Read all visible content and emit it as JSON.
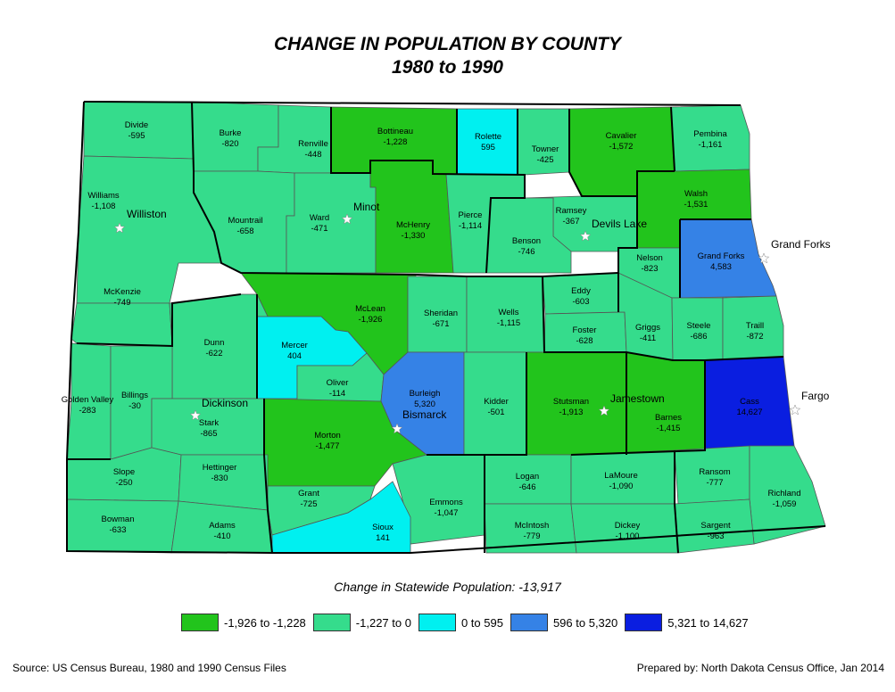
{
  "title": "CHANGE IN POPULATION BY COUNTY",
  "subtitle": "1980 to 1990",
  "statewide_label": "Change in Statewide Population:  -13,917",
  "colors": {
    "dark_green": "#22c41c",
    "medium_green": "#35dc8c",
    "cyan": "#00f0f0",
    "light_blue": "#3582e6",
    "dark_blue": "#0a1ee0",
    "border": "#555555"
  },
  "legend": [
    {
      "label": "-1,926 to -1,228",
      "color": "#22c41c"
    },
    {
      "label": "-1,227 to 0",
      "color": "#35dc8c"
    },
    {
      "label": "0 to 595",
      "color": "#00f0f0"
    },
    {
      "label": "596 to 5,320",
      "color": "#3582e6"
    },
    {
      "label": "5,321 to 14,627",
      "color": "#0a1ee0"
    }
  ],
  "counties": [
    {
      "name": "Divide",
      "value": "-595"
    },
    {
      "name": "Burke",
      "value": "-820"
    },
    {
      "name": "Renville",
      "value": "-448"
    },
    {
      "name": "Bottineau",
      "value": "-1,228"
    },
    {
      "name": "Rolette",
      "value": "595"
    },
    {
      "name": "Towner",
      "value": "-425"
    },
    {
      "name": "Cavalier",
      "value": "-1,572"
    },
    {
      "name": "Pembina",
      "value": "-1,161"
    },
    {
      "name": "Williams",
      "value": "-1,108"
    },
    {
      "name": "Mountrail",
      "value": "-658"
    },
    {
      "name": "Ward",
      "value": "-471"
    },
    {
      "name": "McHenry",
      "value": "-1,330"
    },
    {
      "name": "Pierce",
      "value": "-1,114"
    },
    {
      "name": "Ramsey",
      "value": "-367"
    },
    {
      "name": "Benson",
      "value": "-746"
    },
    {
      "name": "Walsh",
      "value": "-1,531"
    },
    {
      "name": "Nelson",
      "value": "-823"
    },
    {
      "name": "Grand Forks",
      "value": "4,583"
    },
    {
      "name": "McKenzie",
      "value": "-749"
    },
    {
      "name": "McLean",
      "value": "-1,926"
    },
    {
      "name": "Sheridan",
      "value": "-671"
    },
    {
      "name": "Wells",
      "value": "-1,115"
    },
    {
      "name": "Eddy",
      "value": "-603"
    },
    {
      "name": "Foster",
      "value": "-628"
    },
    {
      "name": "Griggs",
      "value": "-411"
    },
    {
      "name": "Steele",
      "value": "-686"
    },
    {
      "name": "Traill",
      "value": "-872"
    },
    {
      "name": "Dunn",
      "value": "-622"
    },
    {
      "name": "Mercer",
      "value": "404"
    },
    {
      "name": "Oliver",
      "value": "-114"
    },
    {
      "name": "Burleigh",
      "value": "5,320"
    },
    {
      "name": "Kidder",
      "value": "-501"
    },
    {
      "name": "Stutsman",
      "value": "-1,913"
    },
    {
      "name": "Barnes",
      "value": "-1,415"
    },
    {
      "name": "Cass",
      "value": "14,627"
    },
    {
      "name": "Golden Valley",
      "value": "-283"
    },
    {
      "name": "Billings",
      "value": "-30"
    },
    {
      "name": "Stark",
      "value": "-865"
    },
    {
      "name": "Morton",
      "value": "-1,477"
    },
    {
      "name": "Slope",
      "value": "-250"
    },
    {
      "name": "Hettinger",
      "value": "-830"
    },
    {
      "name": "Grant",
      "value": "-725"
    },
    {
      "name": "Emmons",
      "value": "-1,047"
    },
    {
      "name": "Logan",
      "value": "-646"
    },
    {
      "name": "LaMoure",
      "value": "-1,090"
    },
    {
      "name": "Ransom",
      "value": "-777"
    },
    {
      "name": "Richland",
      "value": "-1,059"
    },
    {
      "name": "Bowman",
      "value": "-633"
    },
    {
      "name": "Adams",
      "value": "-410"
    },
    {
      "name": "Sioux",
      "value": "141"
    },
    {
      "name": "McIntosh",
      "value": "-779"
    },
    {
      "name": "Dickey",
      "value": "-1,100"
    },
    {
      "name": "Sargent",
      "value": "-963"
    }
  ],
  "cities": [
    "Williston",
    "Minot",
    "Devils Lake",
    "Grand Forks",
    "Dickinson",
    "Bismarck",
    "Jamestown",
    "Fargo"
  ],
  "source": "Source: US Census Bureau, 1980 and 1990 Census Files",
  "prepared_by": "Prepared by: North Dakota Census Office, Jan 2014"
}
